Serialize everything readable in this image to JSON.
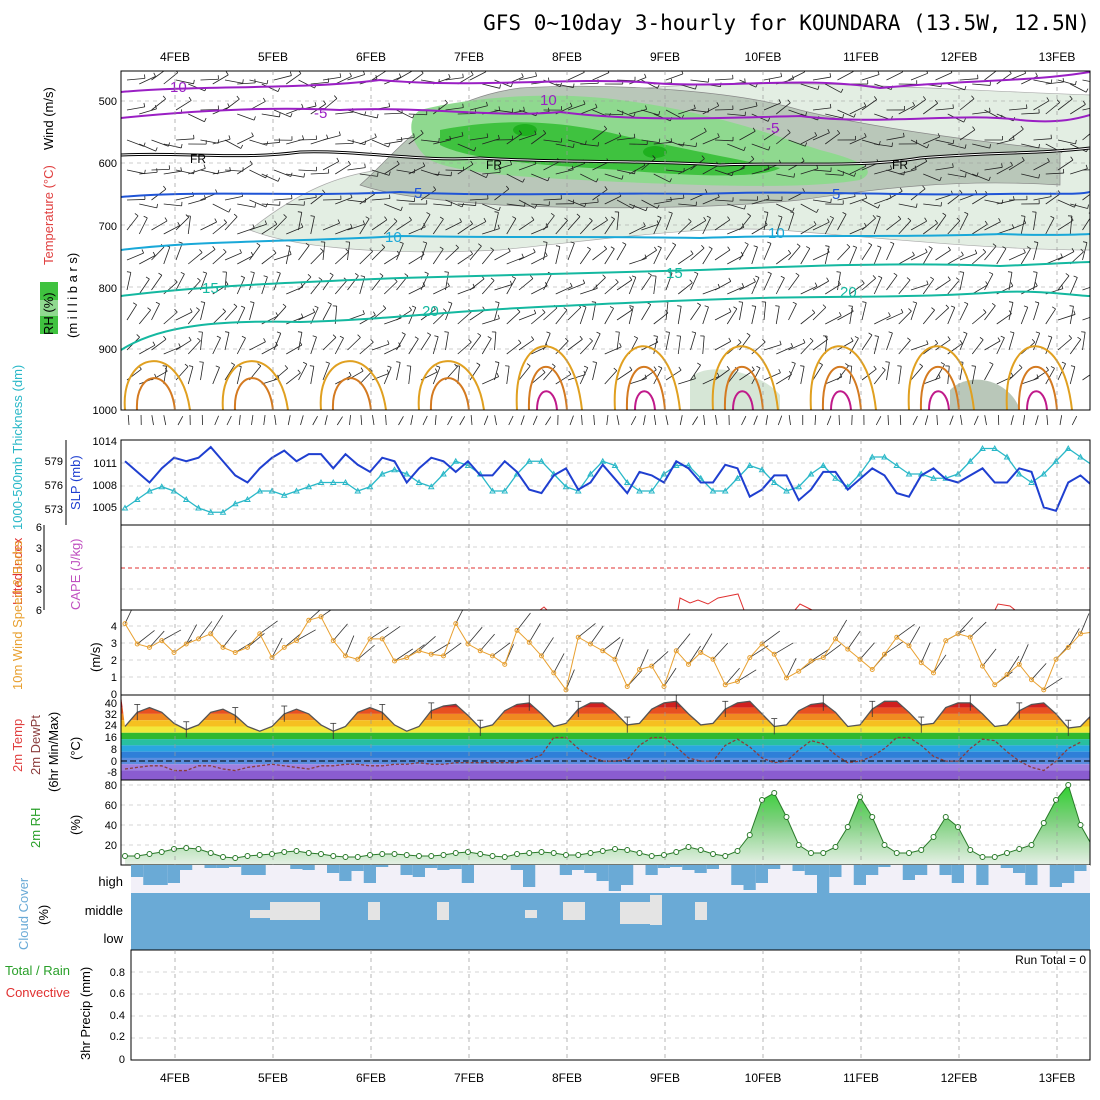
{
  "title": "GFS 0~10day 3-hourly for KOUNDARA (13.5W, 12.5N)",
  "colors": {
    "rh_green": "#3fc23f",
    "rh_grey": "#b9c7b9",
    "temp_purple": "#9a1fc4",
    "temp_blue": "#1f54d6",
    "temp_cyan": "#19a8d8",
    "temp_teal": "#14b8a0",
    "temp_orange": "#e0a020",
    "slp_blue": "#1f3fd0",
    "thick_cyan": "#2ab8c8",
    "li_red": "#e03030",
    "wind_orange": "#e8a030",
    "cloud_blue": "#6aaad6",
    "rh_fill": "#3fcf3f"
  },
  "chart_data": [
    {
      "type": "contour",
      "panel": "upper-air",
      "ylabel": "Wind (m/s)",
      "ylabel_temperature": "Temperature (°C)",
      "ylabel_rh": "RH (%)",
      "ylabel_units": "(m i l l i b a r s)",
      "categories": [
        "4FEB",
        "5FEB",
        "6FEB",
        "7FEB",
        "8FEB",
        "9FEB",
        "10FEB",
        "11FEB",
        "12FEB",
        "13FEB"
      ],
      "y_ticks": [
        "500",
        "600",
        "700",
        "800",
        "900",
        "1000"
      ],
      "contour_labels": [
        "10",
        "-5",
        "FR",
        "5",
        "10",
        "15",
        "20",
        "10",
        "-5",
        "FR",
        "5",
        "10",
        "15",
        "20",
        "FR",
        "5"
      ]
    },
    {
      "type": "line",
      "panel": "slp-thickness",
      "ylabel": "SLP (mb)",
      "ylabel2": "1000-500mb Thickness (dm)",
      "y_ticks_right_text": [
        "1014",
        "1011",
        "1008",
        "1005"
      ],
      "y_ticks_left_text": [
        "579",
        "576",
        "573"
      ],
      "ylim": [
        1002,
        1014
      ],
      "series": [
        {
          "name": "SLP",
          "values": [
            1011,
            1009.5,
            1008,
            1010,
            1011.5,
            1011,
            1011.5,
            1013,
            1011,
            1009,
            1008,
            1010,
            1011.5,
            1012.5,
            1011,
            1012,
            1012,
            1010,
            1012,
            1010.5,
            1009.5,
            1011.5,
            1011,
            1008,
            1010,
            1011.5,
            1011,
            1009.5,
            1011,
            1009,
            1009,
            1011,
            1009.5,
            1007,
            1006.5,
            1009,
            1010,
            1007,
            1008,
            1010.5,
            1008.5,
            1006.5,
            1009.5,
            1009,
            1008,
            1011,
            1010,
            1008,
            1008,
            1010.5,
            1010,
            1006,
            1007,
            1009,
            1009,
            1005.5,
            1007,
            1009.5,
            1009.5,
            1007,
            1008.5,
            1010,
            1009,
            1006.5,
            1006,
            1009,
            1010,
            1008.5,
            1008,
            1009,
            1010,
            1008,
            1008,
            1010,
            1009.5,
            1004.5,
            1004,
            1008,
            1009,
            1007.5,
            1008,
            1010,
            1009.5,
            1007.5,
            1009,
            1009.5
          ]
        },
        {
          "name": "Thickness",
          "values": [
            573,
            574,
            575,
            575.5,
            575,
            574,
            573,
            572.5,
            572.5,
            573.5,
            574,
            575,
            575,
            574.5,
            575,
            575.5,
            576,
            576,
            576,
            575,
            575.5,
            577,
            577.5,
            577,
            576,
            575.5,
            577,
            578.5,
            578,
            577,
            575,
            575,
            577,
            578.5,
            578.5,
            577,
            575.5,
            575,
            577,
            578.5,
            578,
            576,
            575,
            575,
            577,
            578,
            578,
            576.5,
            575,
            575,
            576.5,
            578,
            577.5,
            576,
            575,
            575.5,
            577,
            578,
            576.5,
            575.5,
            577,
            579,
            579,
            578,
            577,
            577,
            576.5,
            576.5,
            577,
            578.5,
            580,
            580,
            579,
            577,
            576,
            577,
            578.5,
            580,
            579,
            578,
            577,
            576
          ]
        }
      ]
    },
    {
      "type": "line",
      "panel": "cape-li",
      "ylabel": "Lifted Index",
      "ylabel2": "CAPE (J/kg)",
      "y_ticks": [
        "6",
        "3",
        "0",
        "3",
        "6"
      ],
      "series": [
        {
          "name": "Lifted Index",
          "values": [
            null,
            null,
            null,
            null,
            null,
            null,
            null,
            null,
            null,
            null,
            null,
            null,
            null,
            null,
            null,
            null,
            null,
            null,
            null,
            null,
            null,
            null,
            null,
            null,
            null,
            null,
            null,
            null,
            null,
            null,
            null,
            null,
            null,
            null,
            null,
            null,
            null,
            null,
            null,
            null,
            null,
            null,
            null,
            null,
            null,
            null,
            null,
            null,
            4.5,
            5,
            4.5,
            4.2,
            4
          ]
        }
      ]
    },
    {
      "type": "line",
      "panel": "wind10m",
      "ylabel": "10m Wind Speed & Barbs",
      "ylabel_units": "(m/s)",
      "y_ticks": [
        "4",
        "3",
        "2",
        "1",
        "0"
      ],
      "ylim": [
        0,
        5
      ],
      "series": [
        {
          "name": "10m Wind Speed",
          "values": [
            4.2,
            3.0,
            2.8,
            3.2,
            2.5,
            3.0,
            3.3,
            3.6,
            2.8,
            2.5,
            2.8,
            3.6,
            2.2,
            2.8,
            3.2,
            4.4,
            4.6,
            3.2,
            2.3,
            2.1,
            3.3,
            3.3,
            2.0,
            2.2,
            2.6,
            2.4,
            2.3,
            4.2,
            3.0,
            2.6,
            2.3,
            1.8,
            3.8,
            3.1,
            2.3,
            1.3,
            0.3,
            3.4,
            3.0,
            2.6,
            2.1,
            0.5,
            1.5,
            1.7,
            0.5,
            2.6,
            1.8,
            2.5,
            2.1,
            0.6,
            0.8,
            2.2,
            3.0,
            2.4,
            1.0,
            1.4,
            2.0,
            2.2,
            3.3,
            2.7,
            2.1,
            1.5,
            2.4,
            3.4,
            2.9,
            1.9,
            1.3,
            3.2,
            3.6,
            3.4,
            1.7,
            0.6,
            1.2,
            1.8,
            0.9,
            0.3,
            2.1,
            2.8,
            3.6,
            3.7,
            2.6,
            1.8,
            0.9,
            1.6,
            2.6,
            3.2
          ]
        }
      ]
    },
    {
      "type": "area",
      "panel": "temp2m",
      "ylabel": "2m Temp",
      "ylabel2": "2m DewPt",
      "ylabel3": "(6hr Min/Max)",
      "ylabel_units": "(°C)",
      "y_ticks": [
        "40",
        "32",
        "24",
        "16",
        "8",
        "0",
        "-8"
      ],
      "ylim": [
        -12,
        42
      ],
      "series": [
        {
          "name": "2m Temp",
          "values": [
            22,
            31,
            34,
            31,
            24,
            20,
            23,
            31,
            33,
            29,
            22,
            19,
            22,
            30,
            33,
            30,
            23,
            19,
            22,
            31,
            34,
            31,
            23,
            19,
            22,
            32,
            35,
            36,
            29,
            21,
            23,
            32,
            36,
            37,
            30,
            22,
            24,
            33,
            37,
            37,
            31,
            23,
            24,
            33,
            37,
            38,
            30,
            23,
            24,
            33,
            37,
            38,
            30,
            22,
            23,
            32,
            36,
            37,
            31,
            22,
            23,
            33,
            38,
            38,
            31,
            23,
            24,
            34,
            37,
            37,
            30,
            22,
            23,
            32,
            36,
            37,
            30,
            21,
            22,
            30,
            36,
            36,
            30,
            22,
            21,
            23
          ]
        },
        {
          "name": "2m DewPt",
          "values": [
            -5,
            -4,
            -3,
            -3,
            -6,
            -6,
            -3,
            -3,
            -5,
            -6,
            -4,
            -3,
            -2,
            -3,
            -4,
            -5,
            -3,
            -3,
            -2,
            -2,
            -3,
            -3,
            -2,
            -2,
            -1,
            -2,
            -2,
            -1,
            -1,
            -1,
            -1,
            -1,
            -1,
            1,
            4,
            15,
            15,
            8,
            3,
            0,
            0,
            1,
            10,
            15,
            15,
            9,
            2,
            0,
            0,
            10,
            14,
            9,
            2,
            -1,
            0,
            7,
            13,
            11,
            4,
            -1,
            0,
            3,
            8,
            15,
            15,
            10,
            3,
            0,
            0,
            8,
            14,
            13,
            6,
            0,
            -4,
            -6,
            0,
            8,
            12
          ]
        }
      ]
    },
    {
      "type": "line",
      "panel": "rh2m",
      "ylabel": "2m RH",
      "ylabel_units": "(%)",
      "y_ticks": [
        "80",
        "60",
        "40",
        "20"
      ],
      "ylim": [
        0,
        85
      ],
      "series": [
        {
          "name": "2m RH",
          "values": [
            9,
            9,
            11,
            13,
            16,
            17,
            16,
            12,
            8,
            7,
            9,
            10,
            11,
            13,
            14,
            12,
            11,
            9,
            8,
            8,
            10,
            11,
            11,
            10,
            9,
            9,
            10,
            12,
            13,
            11,
            9,
            8,
            11,
            12,
            13,
            12,
            10,
            10,
            12,
            14,
            16,
            15,
            12,
            9,
            10,
            13,
            18,
            15,
            11,
            9,
            14,
            30,
            65,
            72,
            48,
            20,
            12,
            12,
            18,
            38,
            68,
            48,
            20,
            12,
            12,
            15,
            28,
            48,
            38,
            15,
            8,
            8,
            12,
            16,
            20,
            42,
            65,
            80,
            40,
            18,
            12,
            15,
            14,
            12,
            26,
            40
          ]
        }
      ]
    },
    {
      "type": "bar",
      "panel": "cloud-cover",
      "ylabel": "Cloud Cover",
      "ylabel_units": "(%)",
      "layer_labels": [
        "high",
        "middle",
        "low"
      ]
    },
    {
      "type": "bar",
      "panel": "precip",
      "ylabel": "3hr Precip (mm)",
      "ylabel2": "Total / Rain",
      "ylabel3": "Convective",
      "run_total": "Run Total = 0",
      "y_ticks": [
        "0.8",
        "0.6",
        "0.4",
        "0.2",
        "0"
      ],
      "ylim": [
        0,
        1
      ],
      "categories": [
        "4FEB",
        "5FEB",
        "6FEB",
        "7FEB",
        "8FEB",
        "9FEB",
        "10FEB",
        "11FEB",
        "12FEB",
        "13FEB"
      ]
    }
  ]
}
